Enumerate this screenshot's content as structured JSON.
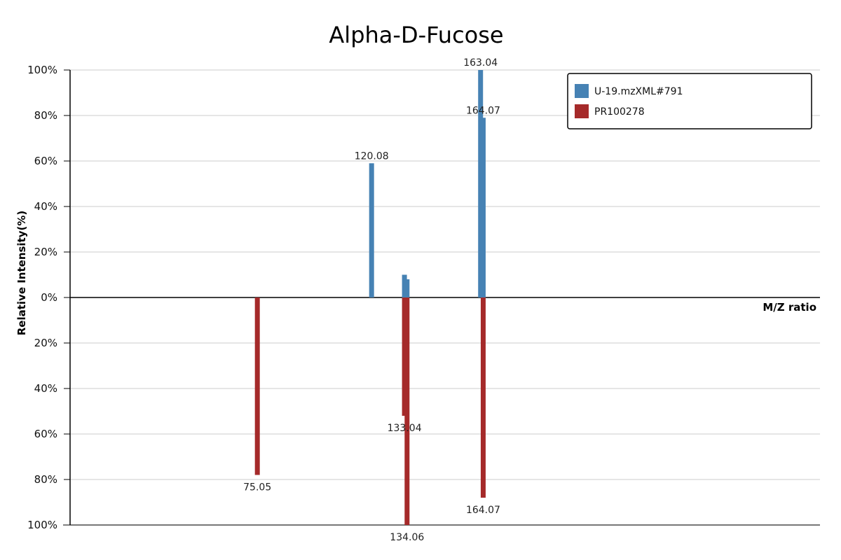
{
  "chart_data": {
    "type": "bar",
    "title": "Alpha-D-Fucose",
    "xlabel": "M/Z ratio",
    "ylabel": "Relative Intensity(%)",
    "ylim": [
      -100,
      100
    ],
    "y_ticks": [
      "100%",
      "80%",
      "60%",
      "40%",
      "20%",
      "0%",
      "20%",
      "40%",
      "60%",
      "80%",
      "100%"
    ],
    "grid": true,
    "legend_position": "top-right",
    "series": [
      {
        "name": "U-19.mzXML#791",
        "color": "#4682b4",
        "direction": "up",
        "peaks": [
          {
            "mz": 120.08,
            "intensity": 59,
            "label": "120.08"
          },
          {
            "mz": 133.04,
            "intensity": 10,
            "label": ""
          },
          {
            "mz": 134.06,
            "intensity": 8,
            "label": ""
          },
          {
            "mz": 163.04,
            "intensity": 100,
            "label": "163.04"
          },
          {
            "mz": 164.07,
            "intensity": 79,
            "label": "164.07"
          }
        ]
      },
      {
        "name": "PR100278",
        "color": "#a52a2a",
        "direction": "down",
        "peaks": [
          {
            "mz": 75.05,
            "intensity": 78,
            "label": "75.05"
          },
          {
            "mz": 133.04,
            "intensity": 52,
            "label": "133.04"
          },
          {
            "mz": 134.06,
            "intensity": 100,
            "label": "134.06"
          },
          {
            "mz": 164.07,
            "intensity": 88,
            "label": "164.07"
          }
        ]
      }
    ]
  }
}
